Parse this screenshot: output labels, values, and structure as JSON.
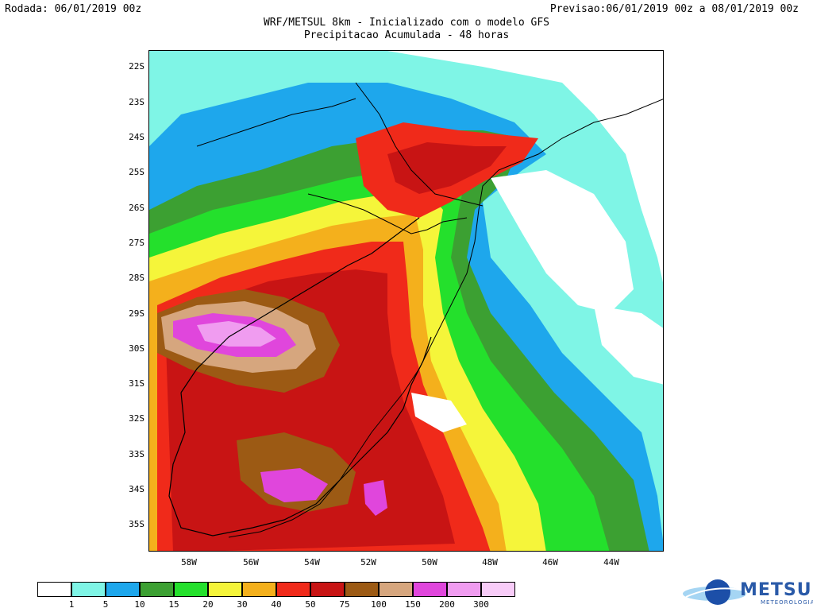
{
  "header": {
    "run": "Rodada: 06/01/2019 00z",
    "forecast": "Previsao:06/01/2019 00z a 08/01/2019 00z",
    "title": "WRF/METSUL 8km - Inicializado com o modelo GFS",
    "subtitle": "Precipitacao Acumulada - 48 horas"
  },
  "map": {
    "lat_labels": [
      "22S",
      "23S",
      "24S",
      "25S",
      "26S",
      "27S",
      "28S",
      "29S",
      "30S",
      "31S",
      "32S",
      "33S",
      "34S",
      "35S"
    ],
    "lon_labels": [
      "58W",
      "56W",
      "54W",
      "52W",
      "50W",
      "48W",
      "46W",
      "44W"
    ],
    "extent": {
      "lon_min": -59.3,
      "lon_max": -42.9,
      "lat_min": -35.8,
      "lat_max": -21.6
    }
  },
  "legend": {
    "values": [
      "1",
      "5",
      "10",
      "15",
      "20",
      "30",
      "40",
      "50",
      "75",
      "100",
      "150",
      "200",
      "300"
    ],
    "colors": [
      "#ffffff",
      "#7ff5e6",
      "#1ea7ec",
      "#3ca032",
      "#24e02c",
      "#f5f53a",
      "#f4b01c",
      "#f02a1a",
      "#c81414",
      "#9c5a14",
      "#d6a67e",
      "#e046dc",
      "#f09cf0",
      "#f8ccf8"
    ]
  },
  "logo": {
    "text": "METSUL",
    "subtext": "METEOROLOGIA"
  }
}
